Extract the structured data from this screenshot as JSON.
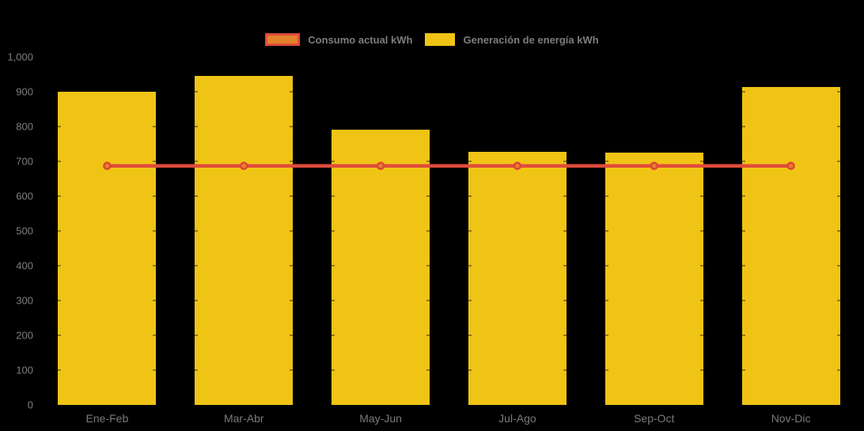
{
  "colors": {
    "background": "#000000",
    "axis_text": "#7e7e7e",
    "legend_text": "#7d7d7d"
  },
  "legend": {
    "position": "top-center"
  },
  "chart_data": {
    "type": "bar",
    "categories": [
      "Ene-Feb",
      "Mar-Abr",
      "May-Jun",
      "Jul-Ago",
      "Sep-Oct",
      "Nov-Dic"
    ],
    "series": [
      {
        "name": "Consumo actual kWh",
        "type": "line",
        "values": [
          687,
          687,
          687,
          687,
          687,
          687
        ],
        "color": "#E04B3B",
        "marker_fill": "#E5812C",
        "marker_stroke": "#DD4437"
      },
      {
        "name": "Generación de energía kWh",
        "type": "bar",
        "values": [
          900,
          945,
          790,
          728,
          724,
          913
        ],
        "color": "#F0C414"
      }
    ],
    "title": "",
    "xlabel": "",
    "ylabel": "",
    "ylim": [
      0,
      1000
    ],
    "ytick_step": 100,
    "ytick_labels": [
      "0",
      "100",
      "200",
      "300",
      "400",
      "500",
      "600",
      "700",
      "800",
      "900",
      "1,000"
    ],
    "grid": "off",
    "legend_position": "top-center",
    "background": "#000000"
  }
}
